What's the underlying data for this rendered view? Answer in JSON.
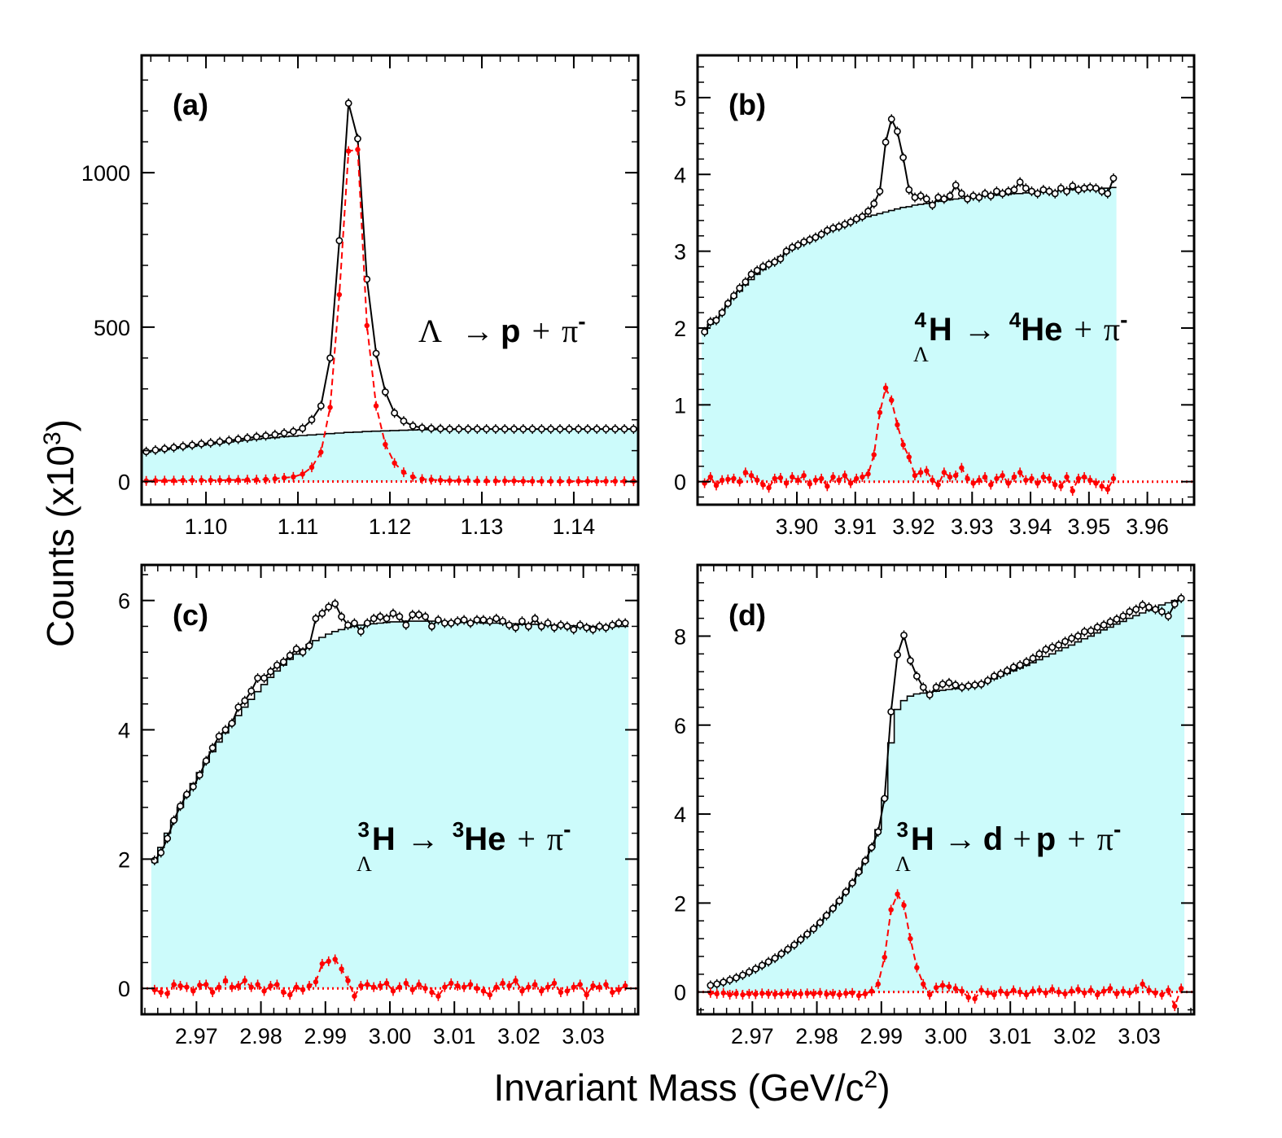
{
  "figure": {
    "ylabel": "Counts (x10",
    "ylabel_exp": "3",
    "ylabel_close": ")",
    "xlabel": "Invariant Mass (GeV/c",
    "xlabel_exp": "2",
    "xlabel_close": ")"
  },
  "colors": {
    "background_fill": "#ccfbfb",
    "total": "#000000",
    "signal": "#ff0000"
  },
  "chart_data": [
    {
      "type": "line",
      "panel_label": "(a)",
      "decay_parts": [
        "Λ",
        "→",
        "p",
        "+",
        "π",
        "-"
      ],
      "xlim": [
        1.093,
        1.147
      ],
      "ylim": [
        -75,
        1380
      ],
      "xticks": [
        1.1,
        1.11,
        1.12,
        1.13,
        1.14
      ],
      "xtick_labels": [
        "1.10",
        "1.11",
        "1.12",
        "1.13",
        "1.14"
      ],
      "yticks": [
        0,
        500,
        1000
      ],
      "ytick_labels": [
        "0",
        "500",
        "1000"
      ],
      "x_start": 1.0935,
      "x_step": 0.001,
      "total": [
        97,
        102,
        106,
        110,
        114,
        118,
        122,
        125,
        129,
        133,
        137,
        141,
        145,
        148,
        152,
        157,
        162,
        172,
        200,
        245,
        400,
        780,
        1225,
        1110,
        655,
        415,
        290,
        222,
        196,
        180,
        174,
        172,
        171,
        170,
        170,
        170,
        170,
        170,
        170,
        170,
        170,
        170,
        170,
        170,
        170,
        170,
        170,
        170,
        170,
        170,
        170,
        170,
        170,
        170
      ],
      "background": [
        95,
        99,
        103,
        107,
        111,
        114,
        118,
        121,
        125,
        128,
        131,
        134,
        137,
        140,
        142,
        145,
        147,
        149,
        151,
        153,
        155,
        157,
        159,
        160,
        162,
        163,
        164,
        165,
        166,
        167,
        168,
        168,
        169,
        169,
        170,
        170,
        170,
        170,
        170,
        170,
        170,
        170,
        170,
        170,
        170,
        170,
        170,
        170,
        170,
        170,
        170,
        170,
        170,
        170
      ],
      "signal": [
        2,
        3,
        3,
        3,
        4,
        4,
        4,
        4,
        4,
        5,
        5,
        6,
        6,
        7,
        9,
        12,
        15,
        24,
        46,
        95,
        240,
        605,
        1070,
        1075,
        505,
        245,
        120,
        60,
        30,
        15,
        8,
        6,
        4,
        3,
        3,
        3,
        2,
        2,
        2,
        2,
        2,
        1,
        1,
        1,
        1,
        1,
        1,
        1,
        1,
        1,
        1,
        1,
        1,
        1
      ]
    },
    {
      "type": "line",
      "panel_label": "(b)",
      "decay_parts": [
        "4",
        "Λ",
        "H",
        "→",
        "4",
        "He",
        "+",
        "π",
        "-"
      ],
      "xlim": [
        3.883,
        3.968
      ],
      "ylim": [
        -0.3,
        5.55
      ],
      "xticks": [
        3.9,
        3.91,
        3.92,
        3.93,
        3.94,
        3.95,
        3.96
      ],
      "xtick_labels": [
        "3.90",
        "3.91",
        "3.92",
        "3.93",
        "3.94",
        "3.95",
        "3.96"
      ],
      "yticks": [
        0,
        1,
        2,
        3,
        4,
        5
      ],
      "ytick_labels": [
        "0",
        "1",
        "2",
        "3",
        "4",
        "5"
      ],
      "x_start": 3.8842,
      "x_step": 0.001,
      "total": [
        1.95,
        2.08,
        2.1,
        2.2,
        2.32,
        2.42,
        2.52,
        2.6,
        2.7,
        2.75,
        2.8,
        2.83,
        2.86,
        2.9,
        3.0,
        3.05,
        3.08,
        3.12,
        3.15,
        3.18,
        3.22,
        3.27,
        3.3,
        3.32,
        3.35,
        3.38,
        3.42,
        3.45,
        3.52,
        3.62,
        3.78,
        4.42,
        4.72,
        4.56,
        4.22,
        3.8,
        3.7,
        3.72,
        3.68,
        3.6,
        3.7,
        3.68,
        3.72,
        3.86,
        3.75,
        3.68,
        3.72,
        3.7,
        3.75,
        3.72,
        3.78,
        3.75,
        3.78,
        3.8,
        3.9,
        3.82,
        3.78,
        3.75,
        3.8,
        3.78,
        3.75,
        3.82,
        3.78,
        3.85,
        3.8,
        3.82,
        3.83,
        3.82,
        3.78,
        3.75,
        3.95
      ],
      "background": [
        1.93,
        2.05,
        2.13,
        2.22,
        2.31,
        2.4,
        2.48,
        2.56,
        2.63,
        2.7,
        2.76,
        2.82,
        2.87,
        2.93,
        2.98,
        3.03,
        3.07,
        3.11,
        3.15,
        3.19,
        3.22,
        3.25,
        3.28,
        3.31,
        3.34,
        3.37,
        3.4,
        3.43,
        3.45,
        3.47,
        3.49,
        3.51,
        3.53,
        3.55,
        3.57,
        3.58,
        3.6,
        3.61,
        3.62,
        3.63,
        3.65,
        3.66,
        3.67,
        3.68,
        3.69,
        3.7,
        3.7,
        3.71,
        3.72,
        3.72,
        3.73,
        3.74,
        3.74,
        3.75,
        3.75,
        3.76,
        3.76,
        3.77,
        3.77,
        3.78,
        3.78,
        3.79,
        3.79,
        3.8,
        3.8,
        3.8,
        3.81,
        3.81,
        3.82,
        3.82,
        3.83
      ],
      "signal": [
        -0.02,
        0.06,
        -0.05,
        0.02,
        0.03,
        0.04,
        0.0,
        0.12,
        0.08,
        0.02,
        -0.04,
        -0.08,
        0.04,
        0.05,
        -0.02,
        0.06,
        0.02,
        0.08,
        -0.03,
        0.02,
        0.04,
        -0.06,
        0.06,
        0.02,
        0.08,
        -0.02,
        0.04,
        0.06,
        0.1,
        0.35,
        0.9,
        1.22,
        1.06,
        0.74,
        0.48,
        0.32,
        0.08,
        0.12,
        0.14,
        0.02,
        -0.04,
        0.12,
        0.06,
        0.08,
        0.18,
        0.04,
        -0.02,
        0.02,
        0.06,
        -0.04,
        0.04,
        0.08,
        -0.02,
        0.06,
        0.12,
        0.02,
        0.04,
        -0.02,
        0.06,
        0.04,
        -0.04,
        -0.06,
        0.06,
        -0.12,
        0.04,
        0.06,
        0.02,
        -0.02,
        -0.06,
        -0.1,
        0.04
      ]
    },
    {
      "type": "line",
      "panel_label": "(c)",
      "decay_parts": [
        "3",
        "Λ",
        "H",
        "→",
        "3",
        "He",
        "+",
        "π",
        "-"
      ],
      "xlim": [
        2.9615,
        3.0385
      ],
      "ylim": [
        -0.4,
        6.55
      ],
      "xticks": [
        2.97,
        2.98,
        2.99,
        3.0,
        3.01,
        3.02,
        3.03
      ],
      "xtick_labels": [
        "2.97",
        "2.98",
        "2.99",
        "3.00",
        "3.01",
        "3.02",
        "3.03"
      ],
      "yticks": [
        0,
        2,
        4,
        6
      ],
      "ytick_labels": [
        "0",
        "2",
        "4",
        "6"
      ],
      "x_start": 2.9635,
      "x_step": 0.001,
      "total": [
        1.98,
        2.1,
        2.32,
        2.6,
        2.82,
        3.0,
        3.12,
        3.3,
        3.52,
        3.72,
        3.9,
        4.0,
        4.1,
        4.35,
        4.45,
        4.6,
        4.8,
        4.8,
        4.9,
        5.0,
        5.05,
        5.15,
        5.25,
        5.2,
        5.3,
        5.72,
        5.8,
        5.9,
        5.95,
        5.75,
        5.62,
        5.65,
        5.52,
        5.65,
        5.72,
        5.75,
        5.72,
        5.8,
        5.75,
        5.62,
        5.78,
        5.78,
        5.75,
        5.6,
        5.7,
        5.65,
        5.65,
        5.68,
        5.7,
        5.65,
        5.7,
        5.7,
        5.68,
        5.72,
        5.68,
        5.62,
        5.58,
        5.68,
        5.6,
        5.72,
        5.6,
        5.65,
        5.58,
        5.62,
        5.6,
        5.55,
        5.62,
        5.58,
        5.55,
        5.6,
        5.58,
        5.62,
        5.65,
        5.65
      ],
      "background": [
        1.95,
        2.18,
        2.4,
        2.6,
        2.8,
        2.99,
        3.17,
        3.34,
        3.5,
        3.66,
        3.81,
        3.95,
        4.09,
        4.22,
        4.35,
        4.47,
        4.59,
        4.7,
        4.81,
        4.91,
        5.0,
        5.09,
        5.17,
        5.25,
        5.32,
        5.38,
        5.43,
        5.48,
        5.52,
        5.55,
        5.58,
        5.6,
        5.62,
        5.63,
        5.64,
        5.65,
        5.66,
        5.67,
        5.67,
        5.68,
        5.68,
        5.68,
        5.68,
        5.68,
        5.68,
        5.67,
        5.67,
        5.67,
        5.66,
        5.66,
        5.66,
        5.65,
        5.65,
        5.65,
        5.64,
        5.64,
        5.64,
        5.63,
        5.63,
        5.63,
        5.62,
        5.62,
        5.62,
        5.62,
        5.61,
        5.61,
        5.61,
        5.61,
        5.6,
        5.6,
        5.6,
        5.6,
        5.6,
        5.6
      ],
      "signal": [
        -0.02,
        -0.06,
        -0.08,
        0.06,
        0.04,
        0.02,
        -0.04,
        0.05,
        0.06,
        -0.06,
        0.02,
        0.12,
        0.02,
        0.04,
        0.12,
        0.02,
        0.06,
        -0.04,
        0.04,
        0.06,
        -0.06,
        -0.1,
        0.02,
        -0.02,
        0.04,
        0.1,
        0.38,
        0.42,
        0.45,
        0.3,
        0.12,
        -0.12,
        0.04,
        0.06,
        0.02,
        0.04,
        0.08,
        -0.04,
        0.02,
        0.08,
        -0.02,
        0.06,
        0.0,
        -0.06,
        -0.12,
        0.02,
        0.08,
        0.04,
        0.02,
        0.06,
        0.0,
        -0.04,
        -0.1,
        0.02,
        0.08,
        0.04,
        0.12,
        -0.04,
        0.02,
        0.06,
        -0.04,
        0.02,
        0.08,
        -0.06,
        -0.04,
        0.02,
        0.06,
        -0.1,
        0.04,
        0.02,
        0.06,
        -0.06,
        -0.02,
        0.04
      ]
    },
    {
      "type": "line",
      "panel_label": "(d)",
      "decay_parts": [
        "3",
        "Λ",
        "H",
        "→",
        "d",
        "+",
        "p",
        "+",
        "π",
        "-"
      ],
      "xlim": [
        2.9615,
        3.0385
      ],
      "ylim": [
        -0.5,
        9.6
      ],
      "xticks": [
        2.97,
        2.98,
        2.99,
        3.0,
        3.01,
        3.02,
        3.03
      ],
      "xtick_labels": [
        "2.97",
        "2.98",
        "2.99",
        "3.00",
        "3.01",
        "3.02",
        "3.03"
      ],
      "yticks": [
        0,
        2,
        4,
        6,
        8
      ],
      "ytick_labels": [
        "0",
        "2",
        "4",
        "6",
        "8"
      ],
      "x_start": 2.9635,
      "x_step": 0.001,
      "total": [
        0.15,
        0.18,
        0.22,
        0.27,
        0.32,
        0.38,
        0.45,
        0.52,
        0.6,
        0.68,
        0.76,
        0.86,
        0.96,
        1.06,
        1.18,
        1.3,
        1.42,
        1.56,
        1.72,
        1.88,
        2.05,
        2.25,
        2.45,
        2.7,
        2.95,
        3.25,
        3.6,
        4.35,
        6.3,
        7.58,
        8.02,
        7.45,
        7.1,
        6.85,
        6.68,
        6.85,
        6.92,
        6.95,
        6.9,
        6.85,
        6.88,
        6.9,
        6.92,
        7.0,
        7.1,
        7.15,
        7.22,
        7.3,
        7.35,
        7.42,
        7.5,
        7.6,
        7.7,
        7.75,
        7.8,
        7.88,
        7.95,
        8.0,
        8.1,
        8.12,
        8.2,
        8.25,
        8.32,
        8.38,
        8.45,
        8.55,
        8.6,
        8.7,
        8.65,
        8.6,
        8.55,
        8.45,
        8.72,
        8.85
      ],
      "background": [
        0.14,
        0.18,
        0.22,
        0.26,
        0.31,
        0.37,
        0.43,
        0.5,
        0.58,
        0.66,
        0.75,
        0.85,
        0.95,
        1.06,
        1.18,
        1.3,
        1.43,
        1.57,
        1.73,
        1.89,
        2.06,
        2.25,
        2.45,
        2.68,
        2.93,
        3.25,
        3.65,
        4.35,
        5.6,
        6.35,
        6.55,
        6.65,
        6.7,
        6.72,
        6.74,
        6.76,
        6.78,
        6.8,
        6.82,
        6.84,
        6.86,
        6.89,
        6.93,
        6.98,
        7.04,
        7.1,
        7.16,
        7.22,
        7.28,
        7.34,
        7.4,
        7.47,
        7.54,
        7.6,
        7.67,
        7.74,
        7.8,
        7.87,
        7.94,
        8.0,
        8.07,
        8.14,
        8.2,
        8.27,
        8.33,
        8.4,
        8.46,
        8.52,
        8.58,
        8.64,
        8.7,
        8.75,
        8.8,
        8.85
      ],
      "signal": [
        -0.02,
        -0.04,
        -0.02,
        -0.06,
        -0.04,
        -0.06,
        -0.04,
        -0.05,
        -0.03,
        -0.04,
        -0.05,
        -0.04,
        -0.03,
        -0.05,
        -0.04,
        -0.03,
        -0.04,
        -0.02,
        -0.05,
        -0.04,
        -0.06,
        -0.03,
        -0.02,
        -0.08,
        -0.04,
        0.02,
        0.18,
        0.78,
        1.85,
        2.2,
        1.95,
        1.2,
        0.55,
        0.18,
        -0.06,
        0.1,
        0.15,
        0.12,
        0.08,
        0.02,
        -0.12,
        -0.15,
        0.04,
        -0.02,
        -0.06,
        0.02,
        -0.04,
        0.04,
        0.0,
        -0.06,
        0.02,
        0.04,
        -0.02,
        0.06,
        0.0,
        -0.04,
        0.02,
        0.06,
        -0.02,
        0.04,
        -0.06,
        0.02,
        0.08,
        -0.04,
        0.02,
        -0.02,
        0.06,
        0.18,
        0.04,
        -0.02,
        -0.06,
        0.04,
        -0.32,
        0.08
      ]
    }
  ]
}
